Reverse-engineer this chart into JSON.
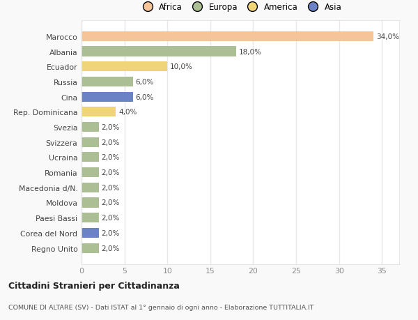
{
  "countries": [
    "Marocco",
    "Albania",
    "Ecuador",
    "Russia",
    "Cina",
    "Rep. Dominicana",
    "Svezia",
    "Svizzera",
    "Ucraina",
    "Romania",
    "Macedonia d/N.",
    "Moldova",
    "Paesi Bassi",
    "Corea del Nord",
    "Regno Unito"
  ],
  "values": [
    34.0,
    18.0,
    10.0,
    6.0,
    6.0,
    4.0,
    2.0,
    2.0,
    2.0,
    2.0,
    2.0,
    2.0,
    2.0,
    2.0,
    2.0
  ],
  "categories": [
    "Africa",
    "Europa",
    "America",
    "Europa",
    "Asia",
    "America",
    "Europa",
    "Europa",
    "Europa",
    "Europa",
    "Europa",
    "Europa",
    "Europa",
    "Asia",
    "Europa"
  ],
  "colors": {
    "Africa": "#F5C499",
    "Europa": "#ABBE94",
    "America": "#F0D478",
    "Asia": "#6B82C4"
  },
  "legend_labels": [
    "Africa",
    "Europa",
    "America",
    "Asia"
  ],
  "legend_colors": [
    "#F5C499",
    "#ABBE94",
    "#F0D478",
    "#6B82C4"
  ],
  "title_bold": "Cittadini Stranieri per Cittadinanza",
  "subtitle": "COMUNE DI ALTARE (SV) - Dati ISTAT al 1° gennaio di ogni anno - Elaborazione TUTTITALIA.IT",
  "xlim": [
    0,
    37
  ],
  "xticks": [
    0,
    5,
    10,
    15,
    20,
    25,
    30,
    35
  ],
  "background_color": "#f9f9f9",
  "bar_background": "#ffffff",
  "gridcolor": "#e8e8e8"
}
